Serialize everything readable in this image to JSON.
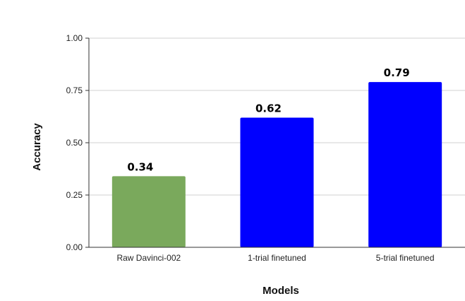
{
  "chart_data": {
    "type": "bar",
    "categories": [
      "Raw Davinci-002",
      "1-trial finetuned",
      "5-trial finetuned"
    ],
    "values": [
      0.34,
      0.62,
      0.79
    ],
    "value_labels": [
      "0.34",
      "0.62",
      "0.79"
    ],
    "bar_colors": [
      "#7aa95c",
      "#0000ff",
      "#0000ff"
    ],
    "xlabel": "Models",
    "ylabel": "Accuracy",
    "ylim": [
      0,
      1
    ],
    "yticks": [
      0,
      0.25,
      0.5,
      0.75,
      1
    ],
    "ytick_labels": [
      "0.00",
      "0.25",
      "0.50",
      "0.75",
      "1.00"
    ],
    "grid": true,
    "gridline_color": "#d0d0d0",
    "legend": "none"
  }
}
